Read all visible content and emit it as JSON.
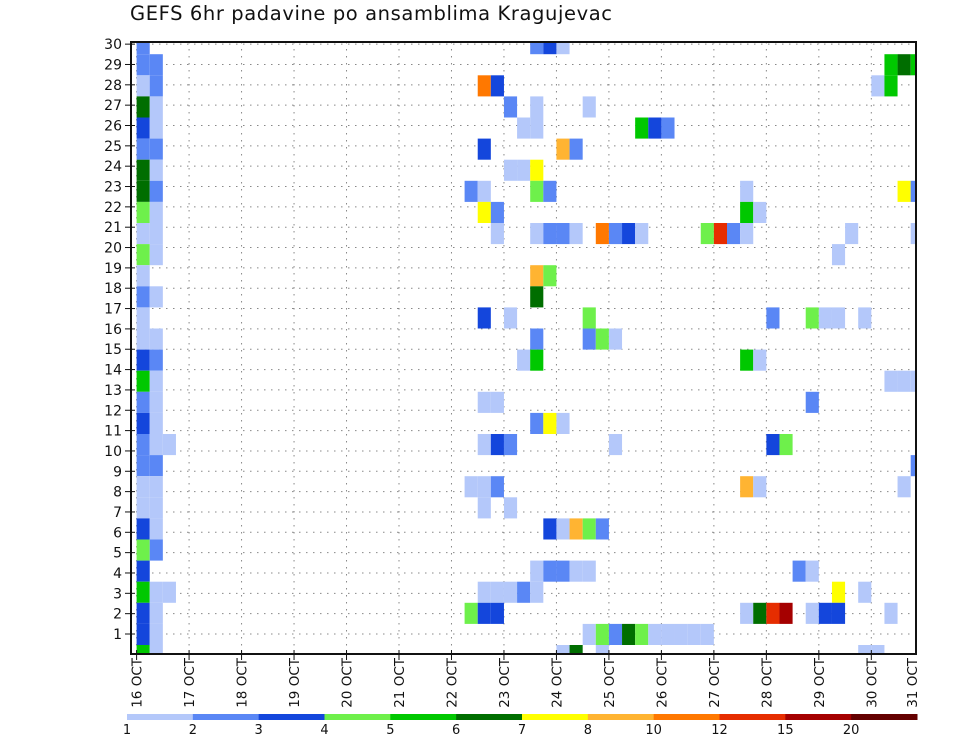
{
  "title": "GEFS 6hr padavine po ansamblima Kragujevac",
  "chart_data": {
    "type": "heatmap",
    "title": "GEFS 6hr padavine po ansamblima Kragujevac",
    "xlabel": "",
    "ylabel": "",
    "x_tick_labels": [
      "16 OCT",
      "17 OCT",
      "18 OCT",
      "19 OCT",
      "20 OCT",
      "21 OCT",
      "22 OCT",
      "23 OCT",
      "24 OCT",
      "25 OCT",
      "26 OCT",
      "27 OCT",
      "28 OCT",
      "29 OCT",
      "30 OCT",
      "31 OCT"
    ],
    "y_tick_labels": [
      "1",
      "2",
      "3",
      "4",
      "5",
      "6",
      "7",
      "8",
      "9",
      "10",
      "11",
      "12",
      "13",
      "14",
      "15",
      "16",
      "17",
      "18",
      "19",
      "20",
      "21",
      "22",
      "23",
      "24",
      "25",
      "26",
      "27",
      "28",
      "29",
      "30"
    ],
    "columns_per_day": 4,
    "grid": true,
    "legend": {
      "placement": "bottom",
      "labels": [
        "1",
        "2",
        "3",
        "4",
        "5",
        "6",
        "7",
        "8",
        "10",
        "12",
        "15",
        "20"
      ],
      "colors": [
        "#b4c8fa",
        "#5a87f5",
        "#1446dc",
        "#6ef04b",
        "#00c800",
        "#006e00",
        "#ffff00",
        "#ffb432",
        "#ff7800",
        "#e62d00",
        "#a50000",
        "#640000"
      ]
    },
    "rows_note_levels": "cells are [column index (6h step from 16 OCT 00), colour level 1-12]",
    "rows": [
      {
        "band": 29,
        "cells": [
          [
            0,
            2
          ],
          [
            30,
            2
          ],
          [
            31,
            3
          ],
          [
            32,
            1
          ]
        ]
      },
      {
        "band": 28,
        "cells": [
          [
            0,
            2
          ],
          [
            1,
            2
          ],
          [
            57,
            5
          ],
          [
            58,
            6
          ],
          [
            59,
            5
          ]
        ]
      },
      {
        "band": 27,
        "cells": [
          [
            0,
            1
          ],
          [
            1,
            2
          ],
          [
            26,
            9
          ],
          [
            27,
            3
          ],
          [
            56,
            1
          ],
          [
            57,
            5
          ]
        ]
      },
      {
        "band": 26,
        "cells": [
          [
            0,
            6
          ],
          [
            1,
            1
          ],
          [
            28,
            2
          ],
          [
            30,
            1
          ],
          [
            34,
            1
          ]
        ]
      },
      {
        "band": 25,
        "cells": [
          [
            0,
            3
          ],
          [
            1,
            1
          ],
          [
            29,
            1
          ],
          [
            30,
            1
          ],
          [
            38,
            5
          ],
          [
            39,
            3
          ],
          [
            40,
            2
          ]
        ]
      },
      {
        "band": 24,
        "cells": [
          [
            0,
            2
          ],
          [
            1,
            2
          ],
          [
            26,
            3
          ],
          [
            32,
            8
          ],
          [
            33,
            2
          ]
        ]
      },
      {
        "band": 23,
        "cells": [
          [
            0,
            6
          ],
          [
            1,
            1
          ],
          [
            28,
            1
          ],
          [
            29,
            1
          ],
          [
            30,
            7
          ]
        ]
      },
      {
        "band": 22,
        "cells": [
          [
            0,
            6
          ],
          [
            1,
            2
          ],
          [
            25,
            2
          ],
          [
            26,
            1
          ],
          [
            30,
            4
          ],
          [
            31,
            2
          ],
          [
            46,
            1
          ],
          [
            58,
            7
          ],
          [
            59,
            2
          ]
        ]
      },
      {
        "band": 21,
        "cells": [
          [
            0,
            4
          ],
          [
            1,
            1
          ],
          [
            26,
            7
          ],
          [
            27,
            2
          ],
          [
            46,
            5
          ],
          [
            47,
            1
          ]
        ]
      },
      {
        "band": 20,
        "cells": [
          [
            0,
            1
          ],
          [
            1,
            1
          ],
          [
            27,
            1
          ],
          [
            30,
            1
          ],
          [
            31,
            2
          ],
          [
            32,
            2
          ],
          [
            33,
            1
          ],
          [
            35,
            9
          ],
          [
            36,
            2
          ],
          [
            37,
            3
          ],
          [
            38,
            1
          ],
          [
            43,
            4
          ],
          [
            44,
            10
          ],
          [
            45,
            2
          ],
          [
            46,
            1
          ],
          [
            54,
            1
          ],
          [
            59,
            1
          ]
        ]
      },
      {
        "band": 19,
        "cells": [
          [
            0,
            4
          ],
          [
            1,
            1
          ],
          [
            53,
            1
          ]
        ]
      },
      {
        "band": 18,
        "cells": [
          [
            0,
            1
          ],
          [
            30,
            8
          ],
          [
            31,
            4
          ]
        ]
      },
      {
        "band": 17,
        "cells": [
          [
            0,
            2
          ],
          [
            1,
            1
          ],
          [
            30,
            6
          ]
        ]
      },
      {
        "band": 16,
        "cells": [
          [
            0,
            1
          ],
          [
            26,
            3
          ],
          [
            28,
            1
          ],
          [
            34,
            4
          ],
          [
            48,
            2
          ],
          [
            51,
            4
          ],
          [
            52,
            1
          ],
          [
            53,
            1
          ],
          [
            55,
            1
          ]
        ]
      },
      {
        "band": 15,
        "cells": [
          [
            0,
            1
          ],
          [
            1,
            1
          ],
          [
            30,
            2
          ],
          [
            34,
            2
          ],
          [
            35,
            4
          ],
          [
            36,
            1
          ]
        ]
      },
      {
        "band": 14,
        "cells": [
          [
            0,
            3
          ],
          [
            1,
            2
          ],
          [
            29,
            1
          ],
          [
            30,
            5
          ],
          [
            46,
            5
          ],
          [
            47,
            1
          ]
        ]
      },
      {
        "band": 13,
        "cells": [
          [
            0,
            5
          ],
          [
            1,
            1
          ],
          [
            57,
            1
          ],
          [
            58,
            1
          ],
          [
            59,
            1
          ]
        ]
      },
      {
        "band": 12,
        "cells": [
          [
            0,
            2
          ],
          [
            1,
            1
          ],
          [
            26,
            1
          ],
          [
            27,
            1
          ],
          [
            51,
            2
          ]
        ]
      },
      {
        "band": 11,
        "cells": [
          [
            0,
            3
          ],
          [
            1,
            1
          ],
          [
            30,
            2
          ],
          [
            31,
            7
          ],
          [
            32,
            1
          ]
        ]
      },
      {
        "band": 10,
        "cells": [
          [
            0,
            2
          ],
          [
            1,
            1
          ],
          [
            2,
            1
          ],
          [
            26,
            1
          ],
          [
            27,
            3
          ],
          [
            28,
            2
          ],
          [
            36,
            1
          ],
          [
            48,
            3
          ],
          [
            49,
            4
          ]
        ]
      },
      {
        "band": 9,
        "cells": [
          [
            0,
            2
          ],
          [
            1,
            2
          ],
          [
            59,
            2
          ]
        ]
      },
      {
        "band": 8,
        "cells": [
          [
            0,
            1
          ],
          [
            1,
            1
          ],
          [
            25,
            1
          ],
          [
            26,
            1
          ],
          [
            27,
            2
          ],
          [
            46,
            8
          ],
          [
            47,
            1
          ],
          [
            58,
            1
          ]
        ]
      },
      {
        "band": 7,
        "cells": [
          [
            0,
            1
          ],
          [
            1,
            1
          ],
          [
            26,
            1
          ],
          [
            28,
            1
          ]
        ]
      },
      {
        "band": 6,
        "cells": [
          [
            0,
            3
          ],
          [
            1,
            1
          ],
          [
            31,
            3
          ],
          [
            32,
            1
          ],
          [
            33,
            8
          ],
          [
            34,
            4
          ],
          [
            35,
            2
          ]
        ]
      },
      {
        "band": 5,
        "cells": [
          [
            0,
            4
          ],
          [
            1,
            2
          ]
        ]
      },
      {
        "band": 4,
        "cells": [
          [
            0,
            3
          ],
          [
            30,
            1
          ],
          [
            31,
            2
          ],
          [
            32,
            2
          ],
          [
            33,
            1
          ],
          [
            34,
            1
          ],
          [
            50,
            2
          ],
          [
            51,
            1
          ]
        ]
      },
      {
        "band": 3,
        "cells": [
          [
            0,
            5
          ],
          [
            1,
            1
          ],
          [
            2,
            1
          ],
          [
            26,
            1
          ],
          [
            27,
            1
          ],
          [
            28,
            1
          ],
          [
            29,
            2
          ],
          [
            30,
            1
          ],
          [
            53,
            7
          ],
          [
            55,
            1
          ]
        ]
      },
      {
        "band": 2,
        "cells": [
          [
            0,
            3
          ],
          [
            1,
            1
          ],
          [
            25,
            4
          ],
          [
            26,
            3
          ],
          [
            27,
            3
          ],
          [
            46,
            1
          ],
          [
            47,
            6
          ],
          [
            48,
            10
          ],
          [
            49,
            11
          ],
          [
            51,
            1
          ],
          [
            52,
            3
          ],
          [
            53,
            3
          ],
          [
            57,
            1
          ]
        ]
      },
      {
        "band": 1,
        "cells": [
          [
            0,
            3
          ],
          [
            1,
            1
          ],
          [
            34,
            1
          ],
          [
            35,
            4
          ],
          [
            36,
            2
          ],
          [
            37,
            6
          ],
          [
            38,
            4
          ],
          [
            39,
            1
          ],
          [
            40,
            1
          ],
          [
            41,
            1
          ],
          [
            42,
            1
          ],
          [
            43,
            1
          ]
        ]
      },
      {
        "band": 0,
        "cells": [
          [
            0,
            5
          ],
          [
            1,
            1
          ],
          [
            32,
            1
          ],
          [
            33,
            6
          ],
          [
            35,
            1
          ],
          [
            55,
            1
          ],
          [
            56,
            1
          ]
        ]
      }
    ]
  }
}
